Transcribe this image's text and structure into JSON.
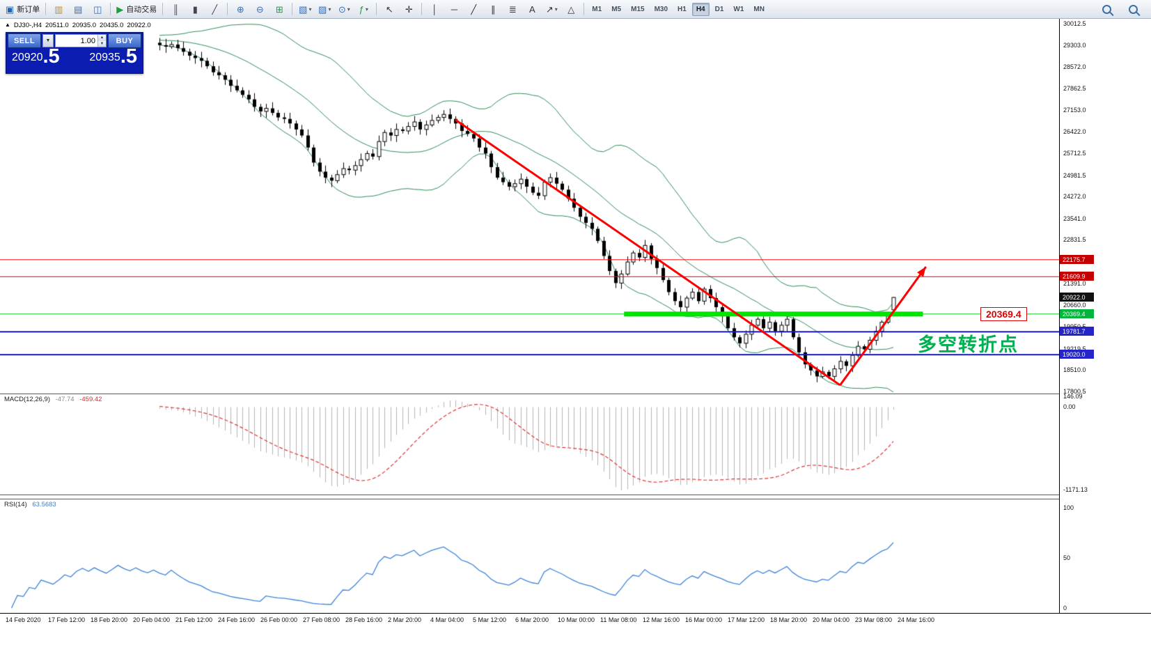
{
  "toolbar": {
    "groups": [
      {
        "items": [
          {
            "name": "new-order-button",
            "glyph": "▣",
            "color": "#1a66b8",
            "label": "新订单"
          }
        ]
      },
      {
        "items": [
          {
            "name": "market-watch-icon",
            "glyph": "▥",
            "color": "#c89010"
          },
          {
            "name": "navigator-icon",
            "glyph": "▤",
            "color": "#2f6fc0"
          },
          {
            "name": "data-window-icon",
            "glyph": "◫",
            "color": "#2f6fc0"
          }
        ]
      },
      {
        "items": [
          {
            "name": "autotrading-button",
            "glyph": "▶",
            "color": "#1f9e3c",
            "label": "自动交易"
          }
        ]
      },
      {
        "items": [
          {
            "name": "bar-chart-type-button",
            "glyph": "║",
            "color": "#445"
          },
          {
            "name": "candlestick-chart-type-button",
            "glyph": "▮",
            "color": "#445"
          },
          {
            "name": "line-chart-type-button",
            "glyph": "╱",
            "color": "#445"
          }
        ]
      },
      {
        "items": [
          {
            "name": "zoom-in-button",
            "glyph": "⊕",
            "color": "#2f6fc0"
          },
          {
            "name": "zoom-out-button",
            "glyph": "⊖",
            "color": "#2f6fc0"
          },
          {
            "name": "tile-windows-button",
            "glyph": "⊞",
            "color": "#1f9e3c"
          }
        ]
      },
      {
        "items": [
          {
            "name": "new-chart-button",
            "glyph": "▧",
            "color": "#2f6fc0",
            "dd": true
          },
          {
            "name": "profiles-button",
            "glyph": "▨",
            "color": "#2f6fc0",
            "dd": true
          },
          {
            "name": "period-button",
            "glyph": "⊙",
            "color": "#2f6fc0",
            "dd": true
          },
          {
            "name": "indicators-button",
            "glyph": "ƒ",
            "color": "#1f9e3c",
            "dd": true
          }
        ]
      },
      {
        "items": [
          {
            "name": "cursor-tool-button",
            "glyph": "↖",
            "color": "#333"
          },
          {
            "name": "crosshair-tool-button",
            "glyph": "✛",
            "color": "#333"
          }
        ]
      },
      {
        "items": [
          {
            "name": "vertical-line-tool",
            "glyph": "│",
            "color": "#333"
          },
          {
            "name": "horizontal-line-tool",
            "glyph": "─",
            "color": "#333"
          },
          {
            "name": "trendline-tool",
            "glyph": "╱",
            "color": "#333"
          },
          {
            "name": "channel-tool",
            "glyph": "∥",
            "color": "#333"
          },
          {
            "name": "fibonacci-tool",
            "glyph": "≣",
            "color": "#333"
          },
          {
            "name": "text-tool",
            "glyph": "A",
            "color": "#333"
          },
          {
            "name": "arrows-tool",
            "glyph": "↗",
            "color": "#333",
            "dd": true
          },
          {
            "name": "shapes-tool",
            "glyph": "△",
            "color": "#333"
          }
        ]
      }
    ],
    "timeframes": {
      "items": [
        "M1",
        "M5",
        "M15",
        "M30",
        "H1",
        "H4",
        "D1",
        "W1",
        "MN"
      ],
      "active": "H4"
    },
    "right_icons": [
      {
        "name": "search-icon"
      },
      {
        "name": "find-symbol-icon"
      }
    ]
  },
  "chart_header": {
    "collapse_glyph": "▲",
    "symbol_period": "DJ30-,H4",
    "open": "20511.0",
    "high": "20935.0",
    "low": "20435.0",
    "close": "20922.0"
  },
  "trade_panel": {
    "sell_label": "SELL",
    "buy_label": "BUY",
    "volume": "1.00",
    "sell_price_main": "20920",
    "sell_price_frac": ".5",
    "buy_price_main": "20935",
    "buy_price_frac": ".5"
  },
  "price_scale": {
    "ticks": [
      "30012.5",
      "29303.0",
      "28572.0",
      "27862.5",
      "27153.0",
      "26422.0",
      "25712.5",
      "24981.5",
      "24272.0",
      "23541.0",
      "22831.5",
      "21391.0",
      "20660.0",
      "19950.5",
      "19219.5",
      "18510.0",
      "17800.5"
    ],
    "badges": [
      {
        "text": "22175.7",
        "bg": "#c40000"
      },
      {
        "text": "21609.9",
        "bg": "#c40000"
      },
      {
        "text": "20922.0",
        "bg": "#111111"
      },
      {
        "text": "20369.4",
        "bg": "#00b43c"
      },
      {
        "text": "19781.7",
        "bg": "#2424c8"
      },
      {
        "text": "19020.0",
        "bg": "#2424c8"
      }
    ]
  },
  "annotations": {
    "support_label": "20369.4",
    "turning_point_text": "多空转折点"
  },
  "indicators": {
    "macd": {
      "label": "MACD(12,26,9)",
      "value1": "-47.74",
      "value2": "-459.42",
      "scale": [
        "146.09",
        "0.00",
        "-1171.13"
      ]
    },
    "rsi": {
      "label": "RSI(14)",
      "value": "63.5683",
      "scale": [
        "100",
        "50",
        "0"
      ]
    }
  },
  "time_axis": {
    "labels": [
      "14 Feb 2020",
      "17 Feb 12:00",
      "18 Feb 20:00",
      "20 Feb 04:00",
      "21 Feb 12:00",
      "24 Feb 16:00",
      "26 Feb 00:00",
      "27 Feb 08:00",
      "28 Feb 16:00",
      "2 Mar 20:00",
      "4 Mar 04:00",
      "5 Mar 12:00",
      "6 Mar 20:00",
      "10 Mar 00:00",
      "11 Mar 08:00",
      "12 Mar 16:00",
      "16 Mar 00:00",
      "17 Mar 12:00",
      "18 Mar 20:00",
      "20 Mar 04:00",
      "23 Mar 08:00",
      "24 Mar 16:00"
    ]
  },
  "chart_data": {
    "type": "candlestick",
    "symbol": "DJ30-",
    "timeframe": "H4",
    "visible_range": {
      "high": 30012.5,
      "low": 17800.5
    },
    "lead_in": 26,
    "closes": [
      29420,
      29350,
      29480,
      29400,
      29510,
      29440,
      29560,
      29480,
      29390,
      29450,
      29530,
      29460,
      29550,
      29600,
      29520,
      29580,
      29500,
      29430,
      29490,
      29560,
      29480,
      29420,
      29470,
      29390,
      29340,
      29380,
      29300,
      29250,
      29320,
      29200,
      29080,
      28950,
      28870,
      28780,
      28600,
      28400,
      28300,
      28150,
      27950,
      27800,
      27650,
      27500,
      27250,
      27100,
      27200,
      27050,
      26900,
      26850,
      26700,
      26500,
      26300,
      25900,
      25400,
      25100,
      24900,
      24800,
      25000,
      25200,
      25150,
      25300,
      25500,
      25700,
      25600,
      26100,
      26400,
      26300,
      26500,
      26450,
      26600,
      26750,
      26500,
      26650,
      26800,
      26900,
      27000,
      26850,
      26700,
      26450,
      26350,
      26200,
      25900,
      25700,
      25250,
      24900,
      24750,
      24600,
      24700,
      24850,
      24600,
      24400,
      24300,
      24750,
      24900,
      24700,
      24500,
      24200,
      23900,
      23600,
      23400,
      23200,
      22800,
      22300,
      21800,
      21400,
      21700,
      22100,
      22400,
      22250,
      22650,
      22200,
      21900,
      21500,
      21100,
      20800,
      20600,
      20900,
      21100,
      20800,
      21200,
      20900,
      20600,
      20300,
      19900,
      19600,
      19400,
      19700,
      20000,
      20200,
      19900,
      20100,
      19800,
      20000,
      20200,
      19600,
      19100,
      18700,
      18500,
      18300,
      18450,
      18300,
      18550,
      18800,
      18650,
      19000,
      19300,
      19200,
      19500,
      19800,
      20100,
      20300,
      20922
    ],
    "current_bar": {
      "open": 20511.0,
      "high": 20935.0,
      "low": 20435.0,
      "close": 20922.0
    },
    "overlays": {
      "bollinger_period": 20,
      "bollinger_dev": 2,
      "band_color": "#2e8b57"
    },
    "objects": {
      "hlines": [
        {
          "price": 22175.7,
          "color": "#ff0000",
          "width": 1
        },
        {
          "price": 21609.9,
          "color": "#ff0000",
          "width": 1
        },
        {
          "price": 20369.4,
          "color": "#00cc22",
          "width": 1
        },
        {
          "price": 19781.7,
          "color": "#1a1ac8",
          "width": 2
        },
        {
          "price": 19020.0,
          "color": "#1a1ac8",
          "width": 2
        }
      ],
      "support_segment": {
        "from_bar": 104.5,
        "to_bar": 155,
        "price": 20369.4,
        "color": "#00e400",
        "width": 7
      },
      "trendline_down": {
        "from_bar": 76,
        "from_price": 26820,
        "to_bar": 141,
        "to_price": 18010,
        "color": "#ff0000",
        "width": 3
      },
      "trendline_up": {
        "from_bar": 141,
        "from_price": 18010,
        "to_bar": 155.5,
        "to_price": 21940,
        "color": "#ff0000",
        "width": 3,
        "arrow": true
      }
    },
    "key_levels": {
      "resistance_1": 22175.7,
      "resistance_2": 21609.9,
      "current_price": 20922.0,
      "support_green": 20369.4,
      "support_blue_1": 19781.7,
      "support_blue_2": 19020.0
    }
  }
}
